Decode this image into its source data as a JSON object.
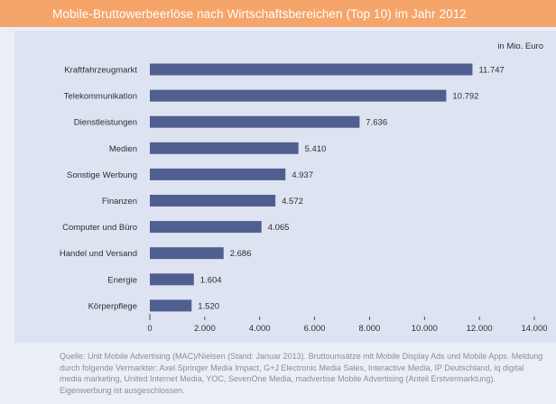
{
  "title": "Mobile-Bruttowerbeerlöse nach Wirtschaftsbereichen (Top 10) im Jahr 2012",
  "unit_label": "in Mio. Euro",
  "source": "Quelle: Unit Mobile Advertising (MAC)/Nielsen (Stand: Januar 2013). Bruttoumsätze mit Mobile Display Ads und Mobile Apps. Meldung durch folgende Vermarkter: Axel Springer Media Impact, G+J Electronic Media Sales, Interactive Media, IP Deutschland, iq digital media marketing, United Internet Media, YOC, SevenOne Media, madvertise Mobile Advertising (Anteil Erstvermarktung). Eigenwerbung ist ausgeschlossen.",
  "colors": {
    "bar": "#4f5f8f",
    "title_bg": "#f5a46a",
    "panel": "#dde3f1"
  },
  "chart_data": {
    "type": "bar",
    "orientation": "horizontal",
    "title": "Mobile-Bruttowerbeerlöse nach Wirtschaftsbereichen (Top 10) im Jahr 2012",
    "categories": [
      "Kraftfahrzeugmarkt",
      "Telekommunikation",
      "Dienstleistungen",
      "Medien",
      "Sonstige Werbung",
      "Finanzen",
      "Computer und Büro",
      "Handel und Versand",
      "Energie",
      "Körperpflege"
    ],
    "values": [
      11747,
      10792,
      7636,
      5410,
      4937,
      4572,
      4065,
      2686,
      1604,
      1520
    ],
    "value_labels": [
      "11.747",
      "10.792",
      "7.636",
      "5.410",
      "4.937",
      "4.572",
      "4.065",
      "2.686",
      "1.604",
      "1.520"
    ],
    "xlim": [
      0,
      14000
    ],
    "ticks": [
      0,
      2000,
      4000,
      6000,
      8000,
      10000,
      12000,
      14000
    ],
    "tick_labels": [
      "0",
      "2.000",
      "4.000",
      "6.000",
      "8.000",
      "10.000",
      "12.000",
      "14.000"
    ],
    "xlabel": "",
    "ylabel": "in Mio. Euro"
  }
}
